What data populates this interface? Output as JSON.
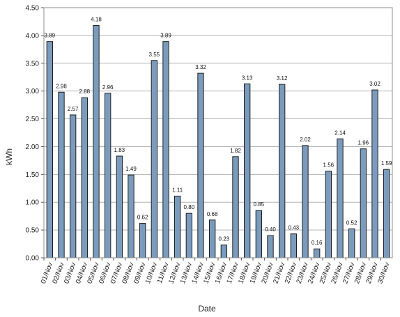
{
  "chart_data": {
    "type": "bar",
    "categories": [
      "01/Nov",
      "02/Nov",
      "03/Nov",
      "04/Nov",
      "05/Nov",
      "06/Nov",
      "07/Nov",
      "08/Nov",
      "09/Nov",
      "10/Nov",
      "11/Nov",
      "12/Nov",
      "13/Nov",
      "14/Nov",
      "15/Nov",
      "16/Nov",
      "17/Nov",
      "18/Nov",
      "19/Nov",
      "20/Nov",
      "21/Nov",
      "22/Nov",
      "23/Nov",
      "24/Nov",
      "25/Nov",
      "26/Nov",
      "27/Nov",
      "28/Nov",
      "29/Nov",
      "30/Nov"
    ],
    "values": [
      3.89,
      2.98,
      2.57,
      2.88,
      4.18,
      2.96,
      1.83,
      1.49,
      0.62,
      3.55,
      3.89,
      1.11,
      0.8,
      3.32,
      0.68,
      0.23,
      1.82,
      3.13,
      0.85,
      0.4,
      3.12,
      0.43,
      2.02,
      0.16,
      1.56,
      2.14,
      0.52,
      1.96,
      3.02,
      1.59
    ],
    "value_labels": [
      "3.89",
      "2.98",
      "2.57",
      "2.88",
      "4.18",
      "2.96",
      "1.83",
      "1.49",
      "0.62",
      "3.55",
      "3.89",
      "1.11",
      "0.80",
      "3.32",
      "0.68",
      "0.23",
      "1.82",
      "3.13",
      "0.85",
      "0.40",
      "3.12",
      "0.43",
      "2.02",
      "0.16",
      "1.56",
      "2.14",
      "0.52",
      "1.96",
      "3.02",
      "1.59"
    ],
    "yticks": [
      "0.00",
      "0.50",
      "1.00",
      "1.50",
      "2.00",
      "2.50",
      "3.00",
      "3.50",
      "4.00",
      "4.50"
    ],
    "xlabel": "Date",
    "ylabel": "kWh",
    "ylim": [
      0,
      4.5
    ],
    "grid": true,
    "bar_color": "#7b9bbd",
    "bar_edge_color": "#1f1f1f",
    "grid_color": "#b3b3b3"
  }
}
